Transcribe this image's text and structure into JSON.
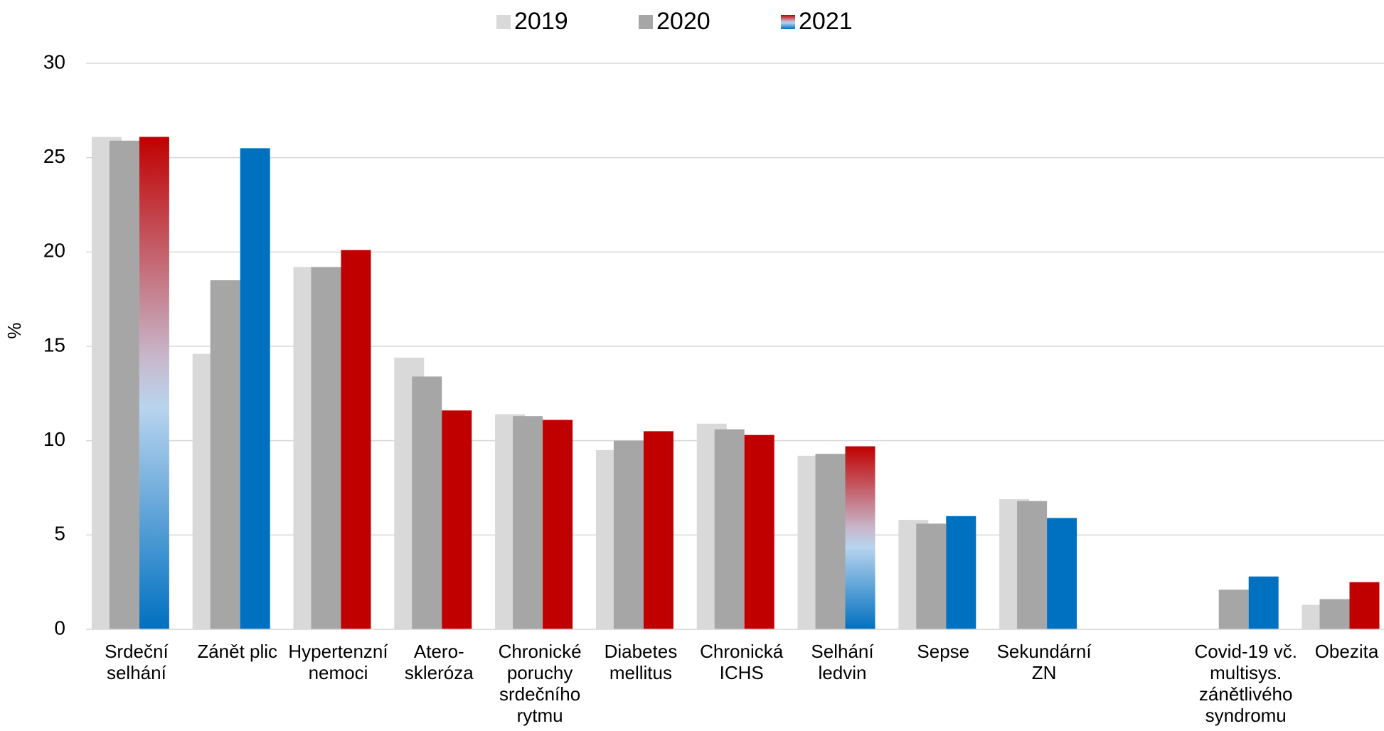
{
  "chart_data": {
    "type": "bar",
    "y_label": "%",
    "categories": [
      [
        "Srdeční",
        "selhání"
      ],
      [
        "Zánět plic"
      ],
      [
        "Hypertenzní",
        "nemoci"
      ],
      [
        "Atero-",
        "skleróza"
      ],
      [
        "Chronické",
        "poruchy",
        "srdečního",
        "rytmu"
      ],
      [
        "Diabetes",
        "mellitus"
      ],
      [
        "Chronická",
        "ICHS"
      ],
      [
        "Selhání",
        "ledvin"
      ],
      [
        "Sepse"
      ],
      [
        "Sekundární",
        "ZN"
      ],
      null,
      [
        "Covid-19 vč.",
        "multisys.",
        "zánětlivého",
        "syndromu"
      ],
      [
        "Obezita"
      ]
    ],
    "series": [
      {
        "name": "2019",
        "color": "#d9d9d9",
        "values": [
          26.1,
          14.6,
          19.2,
          14.4,
          11.4,
          9.5,
          10.9,
          9.2,
          5.8,
          6.9,
          null,
          null,
          1.3
        ]
      },
      {
        "name": "2020",
        "color": "#a6a6a6",
        "values": [
          25.9,
          18.5,
          19.2,
          13.4,
          11.3,
          10.0,
          10.6,
          9.3,
          5.6,
          6.8,
          null,
          2.1,
          1.6
        ]
      },
      {
        "name": "2021",
        "color": "gradient",
        "values": [
          26.1,
          25.5,
          20.1,
          11.6,
          11.1,
          10.5,
          10.3,
          9.7,
          6.0,
          5.9,
          null,
          2.8,
          2.5
        ],
        "colors": [
          "gradient",
          "#0070c0",
          "#c00000",
          "#c00000",
          "#c00000",
          "#c00000",
          "#c00000",
          "gradient",
          "#0070c0",
          "#0070c0",
          null,
          "#0070c0",
          "#c00000"
        ]
      }
    ],
    "ylim": [
      0,
      30
    ],
    "yticks": [
      0,
      5,
      10,
      15,
      20,
      25,
      30
    ],
    "grid": true,
    "legend": "top"
  }
}
